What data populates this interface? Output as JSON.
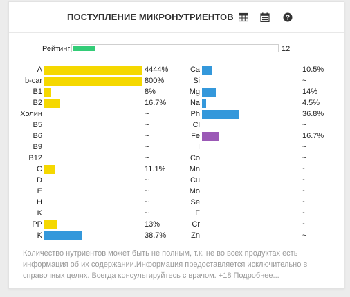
{
  "header": {
    "title": "ПОСТУПЛЕНИЕ МИКРОНУТРИЕНТОВ",
    "icons": [
      "table-icon",
      "calendar-icon",
      "help-icon"
    ]
  },
  "rating": {
    "label": "Рейтинг",
    "value": "12",
    "fill_fraction": 0.11,
    "color": "#33cc77"
  },
  "colors": {
    "yellow": "#f5d800",
    "blue": "#3498db",
    "purple": "#9b59b6"
  },
  "left": [
    {
      "label": "A",
      "value": "4444%",
      "pct": 4444,
      "color": "yellow"
    },
    {
      "label": "b-car",
      "value": "800%",
      "pct": 800,
      "color": "yellow"
    },
    {
      "label": "B1",
      "value": "8%",
      "pct": 8,
      "color": "yellow"
    },
    {
      "label": "B2",
      "value": "16.7%",
      "pct": 16.7,
      "color": "yellow"
    },
    {
      "label": "Холин",
      "value": "~",
      "pct": 0,
      "color": "yellow"
    },
    {
      "label": "B5",
      "value": "~",
      "pct": 0,
      "color": "yellow"
    },
    {
      "label": "B6",
      "value": "~",
      "pct": 0,
      "color": "yellow"
    },
    {
      "label": "B9",
      "value": "~",
      "pct": 0,
      "color": "yellow"
    },
    {
      "label": "B12",
      "value": "~",
      "pct": 0,
      "color": "yellow"
    },
    {
      "label": "C",
      "value": "11.1%",
      "pct": 11.1,
      "color": "yellow"
    },
    {
      "label": "D",
      "value": "~",
      "pct": 0,
      "color": "yellow"
    },
    {
      "label": "E",
      "value": "~",
      "pct": 0,
      "color": "yellow"
    },
    {
      "label": "H",
      "value": "~",
      "pct": 0,
      "color": "yellow"
    },
    {
      "label": "K",
      "value": "~",
      "pct": 0,
      "color": "yellow"
    },
    {
      "label": "PP",
      "value": "13%",
      "pct": 13,
      "color": "yellow"
    },
    {
      "label": "K",
      "value": "38.7%",
      "pct": 38.7,
      "color": "blue"
    }
  ],
  "right": [
    {
      "label": "Ca",
      "value": "10.5%",
      "pct": 10.5,
      "color": "blue"
    },
    {
      "label": "Si",
      "value": "~",
      "pct": 0,
      "color": "blue"
    },
    {
      "label": "Mg",
      "value": "14%",
      "pct": 14,
      "color": "blue"
    },
    {
      "label": "Na",
      "value": "4.5%",
      "pct": 4.5,
      "color": "blue"
    },
    {
      "label": "Ph",
      "value": "36.8%",
      "pct": 36.8,
      "color": "blue"
    },
    {
      "label": "Cl",
      "value": "~",
      "pct": 0,
      "color": "blue"
    },
    {
      "label": "Fe",
      "value": "16.7%",
      "pct": 16.7,
      "color": "purple"
    },
    {
      "label": "I",
      "value": "~",
      "pct": 0,
      "color": "blue"
    },
    {
      "label": "Co",
      "value": "~",
      "pct": 0,
      "color": "blue"
    },
    {
      "label": "Mn",
      "value": "~",
      "pct": 0,
      "color": "blue"
    },
    {
      "label": "Cu",
      "value": "~",
      "pct": 0,
      "color": "blue"
    },
    {
      "label": "Mo",
      "value": "~",
      "pct": 0,
      "color": "blue"
    },
    {
      "label": "Se",
      "value": "~",
      "pct": 0,
      "color": "blue"
    },
    {
      "label": "F",
      "value": "~",
      "pct": 0,
      "color": "blue"
    },
    {
      "label": "Cr",
      "value": "~",
      "pct": 0,
      "color": "blue"
    },
    {
      "label": "Zn",
      "value": "~",
      "pct": 0,
      "color": "blue"
    }
  ],
  "note": "Количество нутриентов может быть не полным, т.к. не во всех продуктах есть информация об их содержании.Информация предоставляется исключительно в справочных целях. Всегда консультируйтесь с врачом. +18 Подробнее..."
}
